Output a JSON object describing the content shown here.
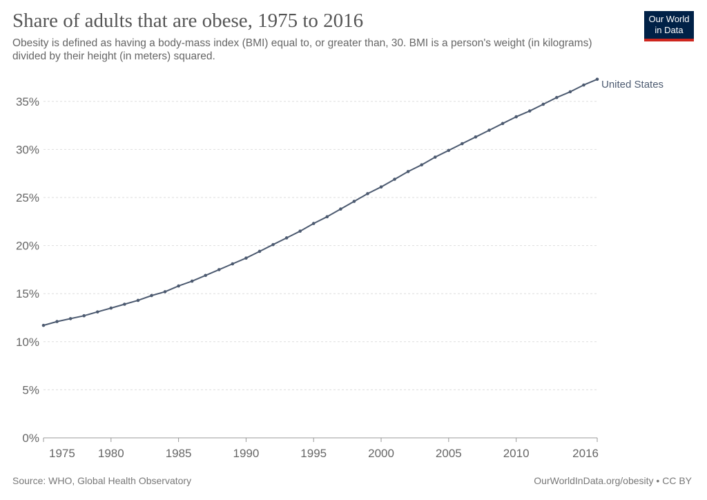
{
  "header": {
    "title": "Share of adults that are obese, 1975 to 2016",
    "subtitle": "Obesity is defined as having a body-mass index (BMI) equal to, or greater than, 30. BMI is a person's weight (in kilograms) divided by their height (in meters) squared."
  },
  "logo": {
    "line1": "Our World",
    "line2": "in Data"
  },
  "footer": {
    "source": "Source: WHO, Global Health Observatory",
    "credit": "OurWorldInData.org/obesity • CC BY"
  },
  "colors": {
    "series": "#4c5a70",
    "grid": "#dddddd",
    "axis": "#999999",
    "tick_text": "#666666",
    "logo_bg": "#002147",
    "logo_accent": "#ce261e"
  },
  "chart_data": {
    "type": "line",
    "title": "Share of adults that are obese, 1975 to 2016",
    "xlabel": "",
    "ylabel": "",
    "xlim": [
      1975,
      2016
    ],
    "ylim": [
      0,
      37.5
    ],
    "grid": true,
    "legend": "line-end label",
    "x_ticks": [
      1975,
      1980,
      1985,
      1990,
      1995,
      2000,
      2005,
      2010,
      2016
    ],
    "y_ticks": [
      0,
      5,
      10,
      15,
      20,
      25,
      30,
      35
    ],
    "y_tick_labels": [
      "0%",
      "5%",
      "10%",
      "15%",
      "20%",
      "25%",
      "30%",
      "35%"
    ],
    "x": [
      1975,
      1976,
      1977,
      1978,
      1979,
      1980,
      1981,
      1982,
      1983,
      1984,
      1985,
      1986,
      1987,
      1988,
      1989,
      1990,
      1991,
      1992,
      1993,
      1994,
      1995,
      1996,
      1997,
      1998,
      1999,
      2000,
      2001,
      2002,
      2003,
      2004,
      2005,
      2006,
      2007,
      2008,
      2009,
      2010,
      2011,
      2012,
      2013,
      2014,
      2015,
      2016
    ],
    "series": [
      {
        "name": "United States",
        "values": [
          11.7,
          12.1,
          12.4,
          12.7,
          13.1,
          13.5,
          13.9,
          14.3,
          14.8,
          15.2,
          15.8,
          16.3,
          16.9,
          17.5,
          18.1,
          18.7,
          19.4,
          20.1,
          20.8,
          21.5,
          22.3,
          23.0,
          23.8,
          24.6,
          25.4,
          26.1,
          26.9,
          27.7,
          28.4,
          29.2,
          29.9,
          30.6,
          31.3,
          32.0,
          32.7,
          33.4,
          34.0,
          34.7,
          35.4,
          36.0,
          36.7,
          37.3
        ]
      }
    ]
  }
}
